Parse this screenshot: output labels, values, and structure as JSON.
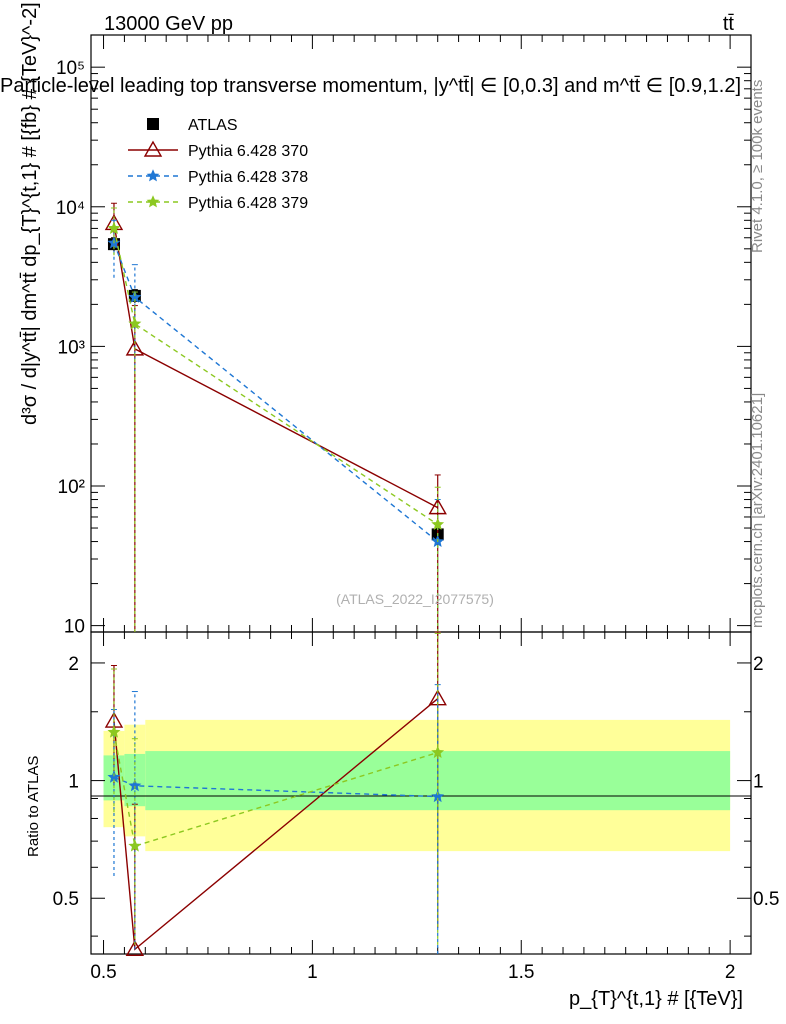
{
  "header": {
    "energy_label": "13000 GeV pp",
    "process_label": "tt̄",
    "title": "Particle-level leading top transverse momentum, |y^tt̄| ∈ [0,0.3] and m^tt̄ ∈ [0.9,1.2]",
    "watermark": "(ATLAS_2022_I2077575)",
    "side_label_top": "Rivet 4.1.0, ≥ 100k events",
    "side_label_bottom": "mcplots.cern.ch [arXiv:2401.10621]"
  },
  "colors": {
    "atlas": "#000000",
    "py370": "#8b0000",
    "py378": "#1f77d4",
    "py379": "#8cc820",
    "band_inner": "#99ff99",
    "band_outer": "#ffff99"
  },
  "chart_data": [
    {
      "type": "line",
      "panel": "main",
      "ylabel": "d³σ / d|y^tt̄| dm^tt̄ dp_{T}^{t,1} # [{fb} # {TeV}^-2]",
      "xlabel": "",
      "yscale": "log",
      "ylim": [
        9,
        170000
      ],
      "xlim": [
        0.47,
        2.05
      ],
      "y_tick_labels": [
        "10",
        "10²",
        "10³",
        "10⁴",
        "10⁵"
      ],
      "y_ticks": [
        10,
        100,
        1000,
        10000,
        100000
      ],
      "legend_position": "top-left",
      "series": [
        {
          "name": "ATLAS",
          "marker": "square",
          "x": [
            0.525,
            0.575,
            1.3
          ],
          "y": [
            5400,
            2300,
            45
          ],
          "err_lo": [
            600,
            250,
            5
          ],
          "err_hi": [
            600,
            250,
            5
          ]
        },
        {
          "name": "Pythia 6.428 370",
          "marker": "triangle-open",
          "x": [
            0.525,
            0.575,
            1.3
          ],
          "y": [
            7600,
            960,
            70
          ],
          "err_lo": [
            2500,
            951,
            61
          ],
          "err_hi": [
            3000,
            1000,
            50
          ]
        },
        {
          "name": "Pythia 6.428 378",
          "marker": "star",
          "x": [
            0.525,
            0.575,
            1.3
          ],
          "y": [
            5500,
            2250,
            40
          ],
          "err_lo": [
            2400,
            1600,
            31
          ],
          "err_hi": [
            2500,
            1600,
            40
          ]
        },
        {
          "name": "Pythia 6.428 379",
          "marker": "star",
          "x": [
            0.525,
            0.575,
            1.3
          ],
          "y": [
            7000,
            1450,
            53
          ],
          "err_lo": [
            2500,
            1441,
            44
          ],
          "err_hi": [
            2800,
            1000,
            45
          ]
        }
      ]
    },
    {
      "type": "line",
      "panel": "ratio",
      "ylabel": "Ratio to ATLAS",
      "xlabel": "p_{T}^{t,1} # [{TeV}]",
      "yscale": "log",
      "ylim": [
        0.36,
        2.4
      ],
      "xlim": [
        0.47,
        2.05
      ],
      "x_ticks": [
        0.5,
        1,
        1.5,
        2
      ],
      "x_tick_labels": [
        "0.5",
        "1",
        "1.5",
        "2"
      ],
      "y_ticks": [
        0.5,
        1,
        2
      ],
      "y_tick_labels": [
        "0.5",
        "1",
        "2"
      ],
      "bands": {
        "edges": [
          0.5,
          0.55,
          0.6,
          2.0
        ],
        "inner_lo": [
          0.89,
          0.86,
          0.84
        ],
        "inner_hi": [
          1.16,
          1.17,
          1.19
        ],
        "outer_lo": [
          0.76,
          0.72,
          0.66
        ],
        "outer_hi": [
          1.34,
          1.39,
          1.43
        ]
      },
      "series": [
        {
          "name": "Pythia 6.428 370",
          "x": [
            0.525,
            0.575,
            1.3
          ],
          "y": [
            1.42,
            0.37,
            1.62
          ],
          "err_lo": [
            0.45,
            0.0,
            1.2
          ],
          "err_hi": [
            0.55,
            0.5,
            0.8
          ]
        },
        {
          "name": "Pythia 6.428 378",
          "x": [
            0.525,
            0.575,
            1.3
          ],
          "y": [
            1.02,
            0.97,
            0.91
          ],
          "err_lo": [
            0.45,
            0.6,
            0.6
          ],
          "err_hi": [
            0.5,
            0.72,
            0.85
          ]
        },
        {
          "name": "Pythia 6.428 379",
          "x": [
            0.525,
            0.575,
            1.3
          ],
          "y": [
            1.33,
            0.68,
            1.18
          ],
          "err_lo": [
            0.5,
            0.3,
            0.8
          ],
          "err_hi": [
            0.6,
            0.6,
            1.2
          ]
        }
      ]
    }
  ]
}
